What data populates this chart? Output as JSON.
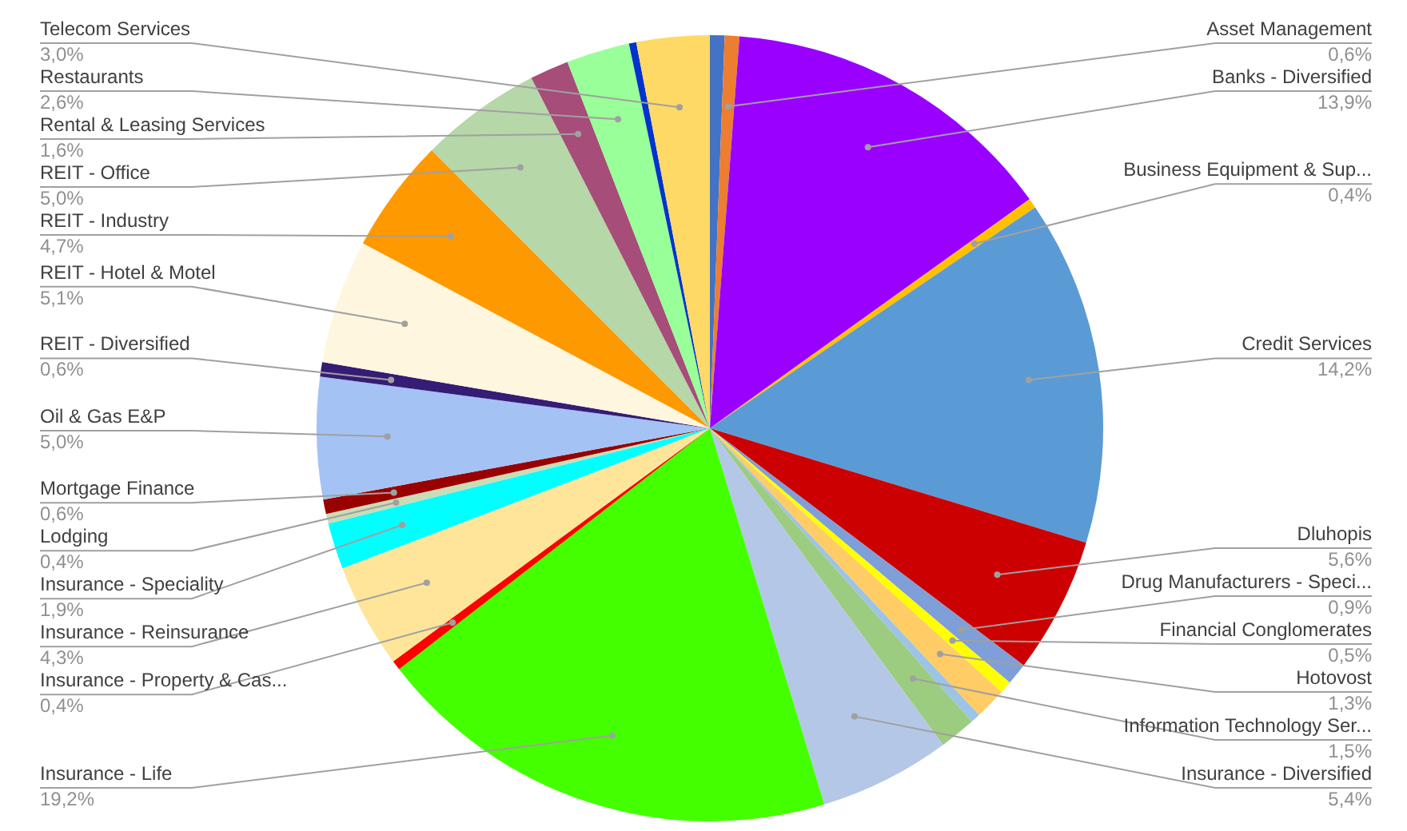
{
  "chart_data": {
    "type": "pie",
    "categories": [
      null,
      "Asset Management",
      "Banks - Diversified",
      "Business Equipment & Sup...",
      "Credit Services",
      "Dluhopis",
      "Drug Manufacturers - Speci...",
      "Financial Conglomerates",
      "Hotovost",
      null,
      "Information Technology Ser...",
      "Insurance - Diversified",
      "Insurance - Life",
      "Insurance - Property & Cas...",
      "Insurance - Reinsurance",
      "Insurance - Speciality",
      "Lodging",
      "Mortgage Finance",
      "Oil & Gas E&P",
      "REIT - Diversified",
      "REIT - Hotel & Motel",
      "REIT - Industry",
      "REIT - Office",
      "Rental & Leasing Services",
      "Restaurants",
      null,
      "Telecom Services"
    ],
    "values": [
      0.6,
      0.6,
      13.9,
      0.4,
      14.2,
      5.6,
      0.9,
      0.5,
      1.3,
      0.4,
      1.5,
      5.4,
      19.2,
      0.4,
      4.3,
      1.9,
      0.4,
      0.6,
      5.0,
      0.6,
      5.1,
      4.7,
      5.0,
      1.6,
      2.6,
      0.3,
      3.0
    ],
    "value_labels": [
      null,
      "0,6%",
      "13,9%",
      "0,4%",
      "14,2%",
      "5,6%",
      "0,9%",
      "0,5%",
      "1,3%",
      null,
      "1,5%",
      "5,4%",
      "19,2%",
      "0,4%",
      "4,3%",
      "1,9%",
      "0,4%",
      "0,6%",
      "5,0%",
      "0,6%",
      "5,1%",
      "4,7%",
      "5,0%",
      "1,6%",
      "2,6%",
      null,
      "3,0%"
    ],
    "colors": [
      "#4472c4",
      "#ed7d31",
      "#9900ff",
      "#ffc000",
      "#5b9bd5",
      "#cc0000",
      "#7f9fd8",
      "#ffff00",
      "#ffcc66",
      "#9dc3e6",
      "#9ccc80",
      "#b4c7e7",
      "#44ff00",
      "#ff0000",
      "#ffe599",
      "#00ffff",
      "#c9dcb6",
      "#990000",
      "#a4c2f4",
      "#351c75",
      "#fff6e0",
      "#ff9900",
      "#b6d7a8",
      "#a64d79",
      "#99ff99",
      "#0033cc",
      "#ffd966"
    ]
  }
}
